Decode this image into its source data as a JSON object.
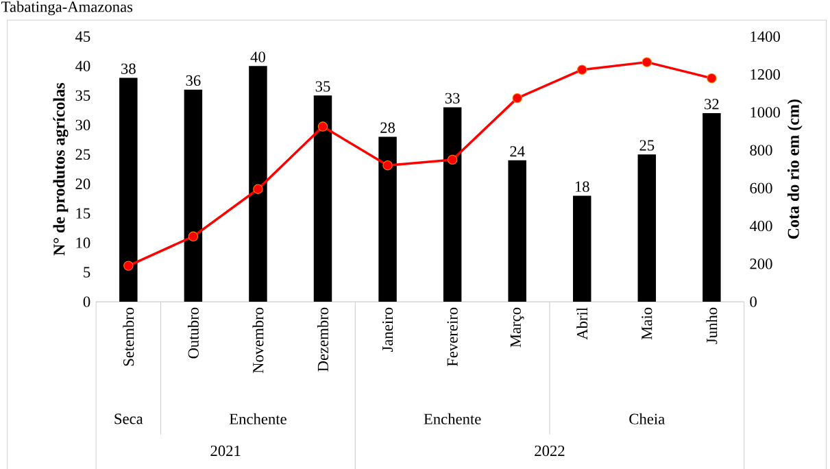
{
  "chart_data": {
    "type": "bar",
    "title": "Tabatinga-Amazonas",
    "ylabel": "N° de produtos agrícolas",
    "y2label": "Cota do rio em (cm)",
    "categories": [
      "Setembro",
      "Outubro",
      "Novembro",
      "Dezembro",
      "Janeiro",
      "Fevereiro",
      "Março",
      "Abril",
      "Maio",
      "Junho"
    ],
    "series": [
      {
        "color": "#000000",
        "values": [
          38,
          36,
          40,
          35,
          28,
          33,
          24,
          18,
          25,
          32
        ],
        "data_labels": true
      },
      {
        "type": "line",
        "axis": "y2",
        "color": "#ff0000",
        "marker": "circle",
        "values": [
          190,
          345,
          595,
          925,
          720,
          750,
          1075,
          1225,
          1265,
          1180
        ]
      }
    ],
    "ylim": [
      0,
      45
    ],
    "yticks": [
      0,
      5,
      10,
      15,
      20,
      25,
      30,
      35,
      40,
      45
    ],
    "y2lim": [
      0,
      1400
    ],
    "y2ticks": [
      0,
      200,
      400,
      600,
      800,
      1000,
      1200,
      1400
    ],
    "annotations": [
      "Seca",
      "Enchente",
      "Enchente",
      "Cheia",
      "2021",
      "2022"
    ]
  }
}
